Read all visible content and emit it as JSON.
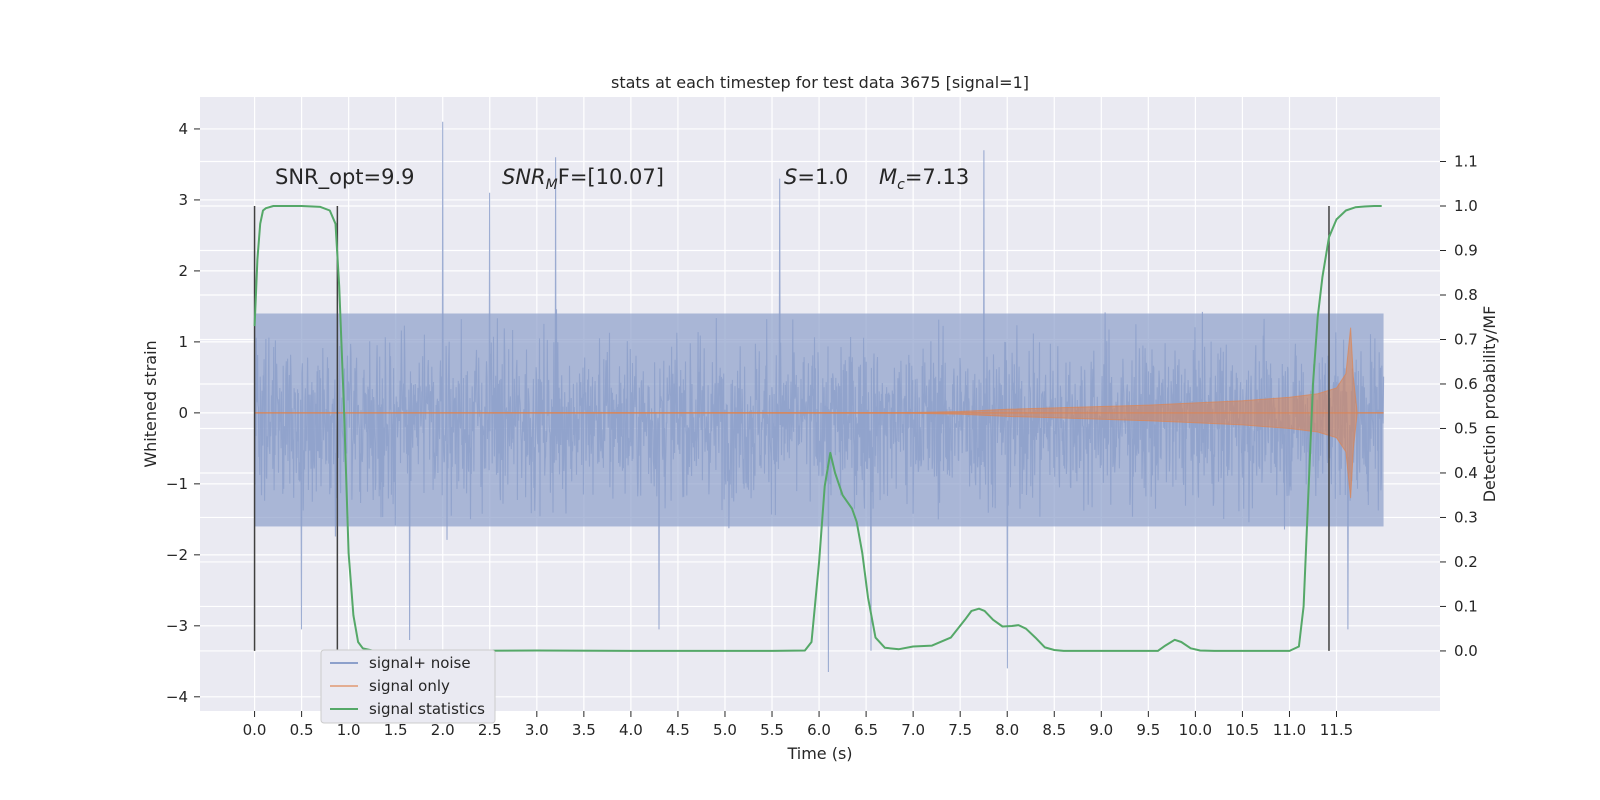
{
  "chart_data": {
    "type": "line",
    "title": "stats at each timestep for test data 3675 [signal=1]",
    "xlabel": "Time (s)",
    "ylabel": "Whitened strain",
    "y2label": "Detection probability/MF",
    "xlim": [
      -0.58,
      12.6
    ],
    "ylim": [
      -4.2,
      4.45
    ],
    "y2lim": [
      -0.135,
      1.245
    ],
    "x_ticks": [
      "0.0",
      "0.5",
      "1.0",
      "1.5",
      "2.0",
      "2.5",
      "3.0",
      "3.5",
      "4.0",
      "4.5",
      "5.0",
      "5.5",
      "6.0",
      "6.5",
      "7.0",
      "7.5",
      "8.0",
      "8.5",
      "9.0",
      "9.5",
      "10.0",
      "10.5",
      "11.0",
      "11.5"
    ],
    "y_ticks": [
      "4",
      "3",
      "2",
      "1",
      "0",
      "−1",
      "−2",
      "−3",
      "−4"
    ],
    "y2_ticks": [
      "1.1",
      "1.0",
      "0.9",
      "0.8",
      "0.7",
      "0.6",
      "0.5",
      "0.4",
      "0.3",
      "0.2",
      "0.1",
      "0.0"
    ],
    "grid": true,
    "legend_position": "lower-left",
    "colors": {
      "background": "#eaeaf2",
      "noise": "#8da0cb",
      "signal": "#dd8452",
      "stats": "#55a868",
      "markers": "#404040"
    },
    "annotations": {
      "snr_opt": "SNR_opt=9.9",
      "snr_mf_sym": "SNR",
      "snr_mf_sub": "M",
      "snr_mf_rest": "F=[10.07]",
      "s_sym": "S",
      "s_rest": "=1.0",
      "mc_sym": "M",
      "mc_sub": "c",
      "mc_rest": "=7.13"
    },
    "marker_lines": [
      0.0,
      0.88,
      11.42
    ],
    "series": [
      {
        "name": "signal+ noise",
        "type": "noise-band",
        "x_range": [
          0.0,
          12.0
        ],
        "typical_range": [
          -1.6,
          1.4
        ],
        "extremes": [
          {
            "x": 2.0,
            "y": 4.1
          },
          {
            "x": 7.75,
            "y": 3.7
          },
          {
            "x": 3.2,
            "y": 3.6
          },
          {
            "x": 5.58,
            "y": 3.3
          },
          {
            "x": 2.5,
            "y": 3.1
          },
          {
            "x": 6.1,
            "y": -3.65
          },
          {
            "x": 8.0,
            "y": -3.6
          },
          {
            "x": 0.5,
            "y": -3.05
          },
          {
            "x": 11.62,
            "y": -3.05
          },
          {
            "x": 6.55,
            "y": -3.35
          },
          {
            "x": 1.65,
            "y": -3.2
          },
          {
            "x": 4.3,
            "y": -3.05
          }
        ]
      },
      {
        "name": "signal only",
        "type": "chirp-envelope",
        "x": [
          0.0,
          7.0,
          7.5,
          8.0,
          8.5,
          9.0,
          9.5,
          10.0,
          10.5,
          11.0,
          11.3,
          11.5,
          11.6,
          11.65,
          11.68,
          11.72,
          12.0
        ],
        "amplitude": [
          0.0,
          0.005,
          0.02,
          0.05,
          0.07,
          0.09,
          0.11,
          0.14,
          0.17,
          0.22,
          0.27,
          0.35,
          0.55,
          1.2,
          0.5,
          0.0,
          0.0
        ]
      },
      {
        "name": "signal statistics",
        "type": "line",
        "axis": "right",
        "x": [
          0.0,
          0.03,
          0.06,
          0.09,
          0.12,
          0.2,
          0.3,
          0.5,
          0.7,
          0.8,
          0.86,
          0.9,
          0.95,
          1.0,
          1.05,
          1.1,
          1.15,
          1.25,
          1.4,
          2.0,
          3.0,
          4.0,
          5.0,
          5.5,
          5.85,
          5.92,
          6.0,
          6.06,
          6.12,
          6.17,
          6.25,
          6.35,
          6.4,
          6.46,
          6.52,
          6.6,
          6.7,
          6.85,
          7.0,
          7.2,
          7.4,
          7.55,
          7.62,
          7.7,
          7.76,
          7.85,
          7.95,
          8.05,
          8.12,
          8.2,
          8.3,
          8.4,
          8.5,
          8.6,
          8.8,
          9.0,
          9.6,
          9.68,
          9.78,
          9.85,
          9.95,
          10.05,
          10.2,
          10.5,
          11.0,
          11.1,
          11.15,
          11.2,
          11.25,
          11.3,
          11.35,
          11.42,
          11.5,
          11.6,
          11.7,
          11.8,
          11.9,
          11.98
        ],
        "values": [
          0.73,
          0.88,
          0.96,
          0.99,
          0.995,
          1.0,
          1.0,
          1.0,
          0.998,
          0.99,
          0.96,
          0.82,
          0.55,
          0.22,
          0.08,
          0.02,
          0.006,
          0.001,
          0.0,
          0.0,
          0.001,
          0.0,
          0.0,
          0.0,
          0.001,
          0.02,
          0.2,
          0.37,
          0.445,
          0.4,
          0.35,
          0.32,
          0.29,
          0.22,
          0.12,
          0.03,
          0.007,
          0.004,
          0.01,
          0.012,
          0.03,
          0.07,
          0.09,
          0.095,
          0.09,
          0.07,
          0.055,
          0.056,
          0.058,
          0.05,
          0.03,
          0.008,
          0.002,
          0.0,
          0.0,
          0.0,
          0.0,
          0.012,
          0.025,
          0.02,
          0.006,
          0.001,
          0.0,
          0.0,
          0.0,
          0.01,
          0.1,
          0.35,
          0.6,
          0.75,
          0.84,
          0.93,
          0.97,
          0.99,
          0.997,
          0.999,
          1.0,
          1.0
        ]
      }
    ]
  }
}
